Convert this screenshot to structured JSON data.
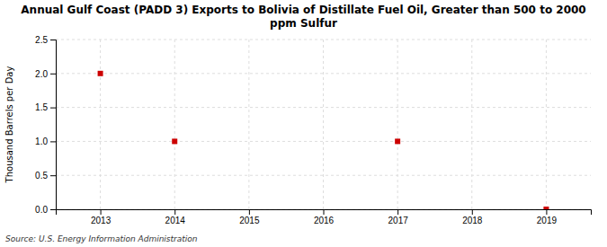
{
  "chart_data": {
    "type": "scatter",
    "title": "Annual Gulf Coast (PADD 3) Exports to Bolivia of Distillate Fuel Oil, Greater than 500 to 2000\nppm Sulfur",
    "y_label": "Thousand Barrels per Day",
    "source": "Source: U.S. Energy Information Administration",
    "x": [
      2013,
      2014,
      2015,
      2016,
      2017,
      2018,
      2019
    ],
    "values": [
      2.0,
      1.0,
      null,
      null,
      1.0,
      null,
      0.0
    ],
    "color": "#cc0000",
    "marker": "square",
    "xlim": [
      2012.4,
      2019.6
    ],
    "xticks": [
      2013,
      2014,
      2015,
      2016,
      2017,
      2018,
      2019
    ],
    "ylim": [
      0.0,
      2.5
    ],
    "yticks": [
      {
        "value": 0.0,
        "label": "0.0"
      },
      0.5,
      {
        "value": 1.0,
        "label": "1.0"
      },
      1.5,
      {
        "value": 2.0,
        "label": "2.0"
      },
      2.5
    ],
    "grid": true
  }
}
